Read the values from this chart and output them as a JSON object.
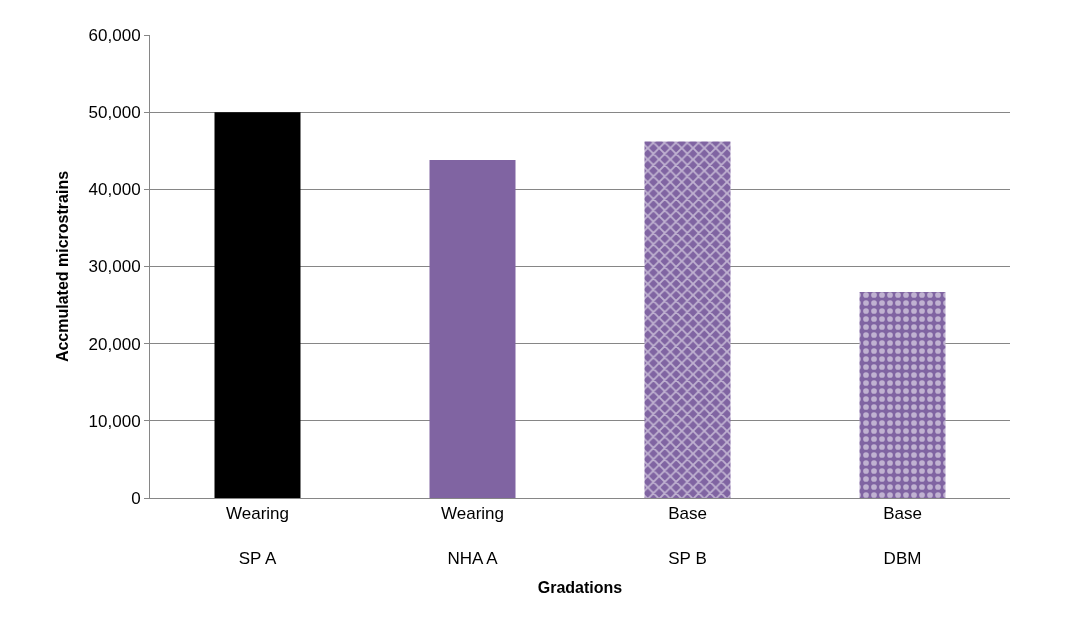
{
  "chart_data": {
    "type": "bar",
    "xlabel": "Gradations",
    "ylabel": "Accmulated microstrains",
    "categories": [
      "Wearing\nSP A",
      "Wearing\nNHA A",
      "Base\nSP B",
      "Base\nDBM"
    ],
    "values": [
      50000,
      43800,
      46200,
      26700
    ],
    "colors": [
      "#000000",
      "#8064a2",
      "#8064a2",
      "#8064a2"
    ],
    "ylim": [
      0,
      60000
    ],
    "yticks": [
      {
        "value": 0,
        "label": "0"
      },
      {
        "value": 10000,
        "label": "10,000"
      },
      {
        "value": 20000,
        "label": "20,000"
      },
      {
        "value": 30000,
        "label": "30,000"
      },
      {
        "value": 40000,
        "label": "40,000"
      },
      {
        "value": 50000,
        "label": "50,000"
      },
      {
        "value": 60000,
        "label": "60,000"
      }
    ],
    "grid": "y",
    "legend": false
  }
}
